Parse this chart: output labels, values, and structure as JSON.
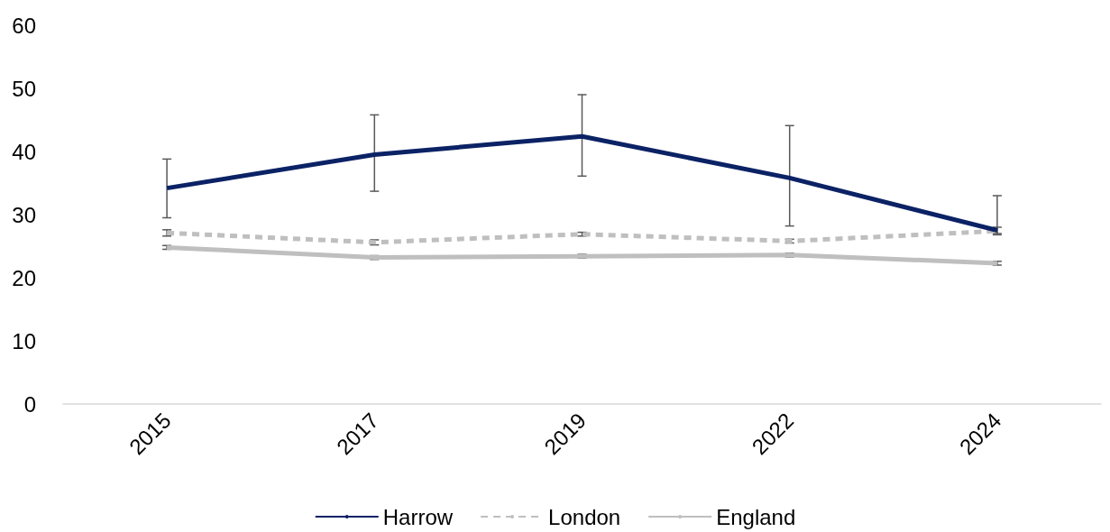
{
  "chart_data": {
    "type": "line",
    "categories": [
      "2015",
      "2017",
      "2019",
      "2022",
      "2024"
    ],
    "series": [
      {
        "name": "Harrow",
        "color": "#0b2265",
        "line_style": "solid",
        "values": [
          34.2,
          39.5,
          42.4,
          35.8,
          27.5
        ],
        "errors": [
          [
            29.5,
            38.8
          ],
          [
            33.7,
            45.8
          ],
          [
            36.1,
            49.0
          ],
          [
            28.2,
            44.1
          ],
          [
            27.0,
            33.0
          ]
        ]
      },
      {
        "name": "London",
        "color": "#bfbfbf",
        "line_style": "dashed",
        "values": [
          27.1,
          25.6,
          26.9,
          25.8,
          27.4
        ],
        "errors": [
          [
            26.6,
            27.6
          ],
          [
            25.2,
            26.0
          ],
          [
            26.6,
            27.2
          ],
          [
            25.5,
            26.1
          ],
          [
            26.8,
            28.0
          ]
        ]
      },
      {
        "name": "England",
        "color": "#bfbfbf",
        "line_style": "solid",
        "values": [
          24.8,
          23.2,
          23.4,
          23.6,
          22.3
        ],
        "errors": [
          [
            24.5,
            25.1
          ],
          [
            22.9,
            23.5
          ],
          [
            23.1,
            23.7
          ],
          [
            23.3,
            23.9
          ],
          [
            22.0,
            22.6
          ]
        ]
      }
    ],
    "ylim": [
      0,
      60
    ],
    "yticks": [
      0,
      10,
      20,
      30,
      40,
      50,
      60
    ],
    "grid": false,
    "legend": "bottom",
    "marker": "none"
  }
}
